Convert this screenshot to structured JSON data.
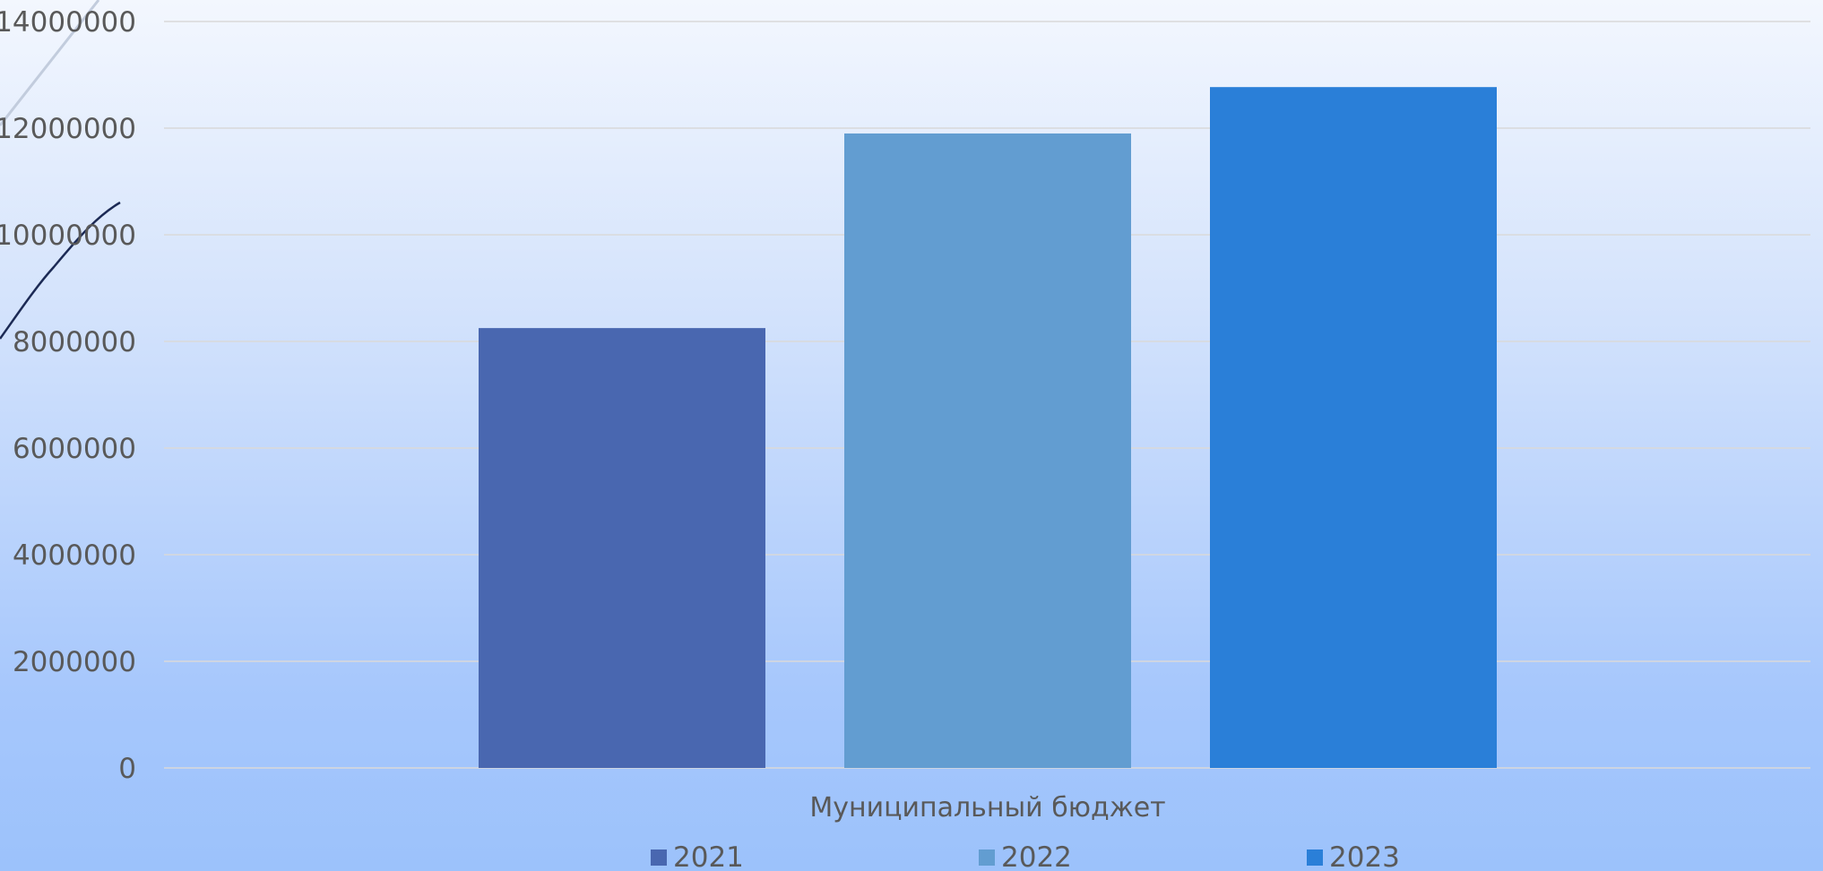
{
  "chart_data": {
    "type": "bar",
    "categories": [
      "Муниципальный бюджет"
    ],
    "series": [
      {
        "name": "2021",
        "values": [
          8250000
        ],
        "color": "#4967b0"
      },
      {
        "name": "2022",
        "values": [
          11900000
        ],
        "color": "#629dd1"
      },
      {
        "name": "2023",
        "values": [
          12770000
        ],
        "color": "#2a7fd8"
      }
    ],
    "yticks": [
      "0",
      "2000000",
      "4000000",
      "6000000",
      "8000000",
      "10000000",
      "12000000",
      "14000000"
    ],
    "ylim": [
      0,
      14000000
    ],
    "grid": true,
    "legend_position": "bottom",
    "title": "",
    "xlabel": "",
    "ylabel": ""
  }
}
